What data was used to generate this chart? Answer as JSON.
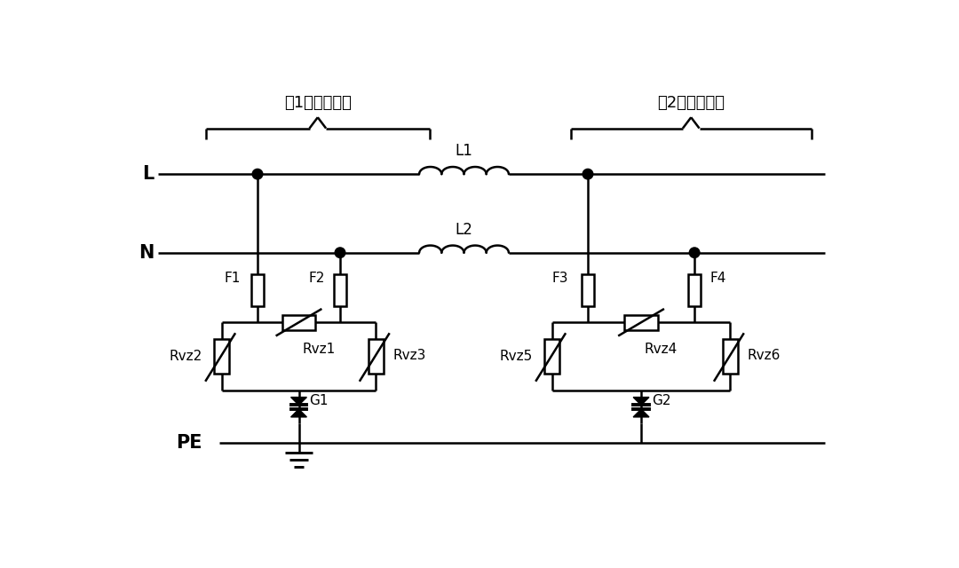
{
  "bg_color": "#ffffff",
  "line_color": "#000000",
  "lw": 1.8,
  "label_L": "L",
  "label_N": "N",
  "label_PE": "PE",
  "label_L1": "L1",
  "label_L2": "L2",
  "label_stage1": "第1级防雷电路",
  "label_stage2": "第2级防雷电路",
  "label_F1": "F1",
  "label_F2": "F2",
  "label_F3": "F3",
  "label_F4": "F4",
  "label_Rvz1": "Rvz1",
  "label_Rvz2": "Rvz2",
  "label_Rvz3": "Rvz3",
  "label_Rvz4": "Rvz4",
  "label_Rvz5": "Rvz5",
  "label_Rvz6": "Rvz6",
  "label_G1": "G1",
  "label_G2": "G2"
}
